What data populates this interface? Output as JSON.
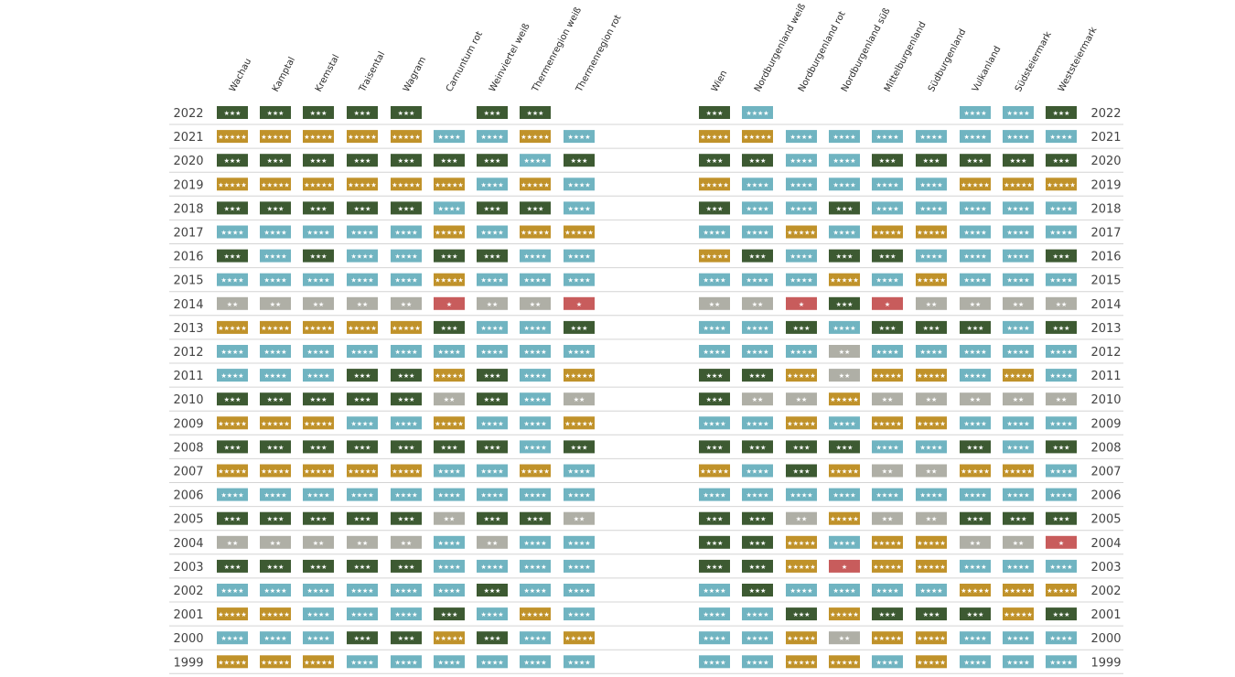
{
  "chart_data": {
    "type": "table",
    "title": "",
    "legend": {
      "1": {
        "color": "#c85c5c",
        "stars": "★"
      },
      "2": {
        "color": "#afafa6",
        "stars": "★★"
      },
      "3": {
        "color": "#3d5a32",
        "stars": "★★★"
      },
      "4": {
        "color": "#70b4c1",
        "stars": "★★★★"
      },
      "5": {
        "color": "#c0922a",
        "stars": "★★★★★"
      }
    },
    "years": [
      "2022",
      "2021",
      "2020",
      "2019",
      "2018",
      "2017",
      "2016",
      "2015",
      "2014",
      "2013",
      "2012",
      "2011",
      "2010",
      "2009",
      "2008",
      "2007",
      "2006",
      "2005",
      "2004",
      "2003",
      "2002",
      "2001",
      "2000",
      "1999"
    ],
    "regions": [
      "Wachau",
      "Kamptal",
      "Kremstal",
      "Traisental",
      "Wagram",
      "Carnuntum rot",
      "Weinviertel weiß",
      "Thermenregion weiß",
      "Thermenregion rot",
      "Wien",
      "Nordburgenland weiß",
      "Nordburgenland rot",
      "Nordburgenland süß",
      "Mittelburgenland",
      "Südburgenland",
      "Vulkanland",
      "Südsteiermark",
      "Weststeiermark"
    ],
    "ratings": [
      [
        3,
        3,
        3,
        3,
        3,
        0,
        3,
        3,
        0,
        3,
        4,
        0,
        0,
        0,
        0,
        4,
        4,
        3
      ],
      [
        5,
        5,
        5,
        5,
        5,
        4,
        4,
        5,
        4,
        5,
        5,
        4,
        4,
        4,
        4,
        4,
        4,
        4
      ],
      [
        3,
        3,
        3,
        3,
        3,
        3,
        3,
        4,
        3,
        3,
        3,
        4,
        4,
        3,
        3,
        3,
        3,
        3
      ],
      [
        5,
        5,
        5,
        5,
        5,
        5,
        4,
        5,
        4,
        5,
        4,
        4,
        4,
        4,
        4,
        5,
        5,
        5
      ],
      [
        3,
        3,
        3,
        3,
        3,
        4,
        3,
        3,
        4,
        3,
        4,
        4,
        3,
        4,
        4,
        4,
        4,
        4
      ],
      [
        4,
        4,
        4,
        4,
        4,
        5,
        4,
        5,
        5,
        4,
        4,
        5,
        4,
        5,
        5,
        4,
        4,
        4
      ],
      [
        3,
        4,
        3,
        4,
        4,
        3,
        3,
        4,
        4,
        5,
        3,
        4,
        3,
        3,
        4,
        4,
        4,
        3
      ],
      [
        4,
        4,
        4,
        4,
        4,
        5,
        4,
        4,
        4,
        4,
        4,
        4,
        5,
        4,
        5,
        4,
        4,
        4
      ],
      [
        2,
        2,
        2,
        2,
        2,
        1,
        2,
        2,
        1,
        2,
        2,
        1,
        3,
        1,
        2,
        2,
        2,
        2
      ],
      [
        5,
        5,
        5,
        5,
        5,
        3,
        4,
        4,
        3,
        4,
        4,
        3,
        4,
        3,
        3,
        3,
        4,
        3
      ],
      [
        4,
        4,
        4,
        4,
        4,
        4,
        4,
        4,
        4,
        4,
        4,
        4,
        2,
        4,
        4,
        4,
        4,
        4
      ],
      [
        4,
        4,
        4,
        3,
        3,
        5,
        3,
        4,
        5,
        3,
        3,
        5,
        2,
        5,
        5,
        4,
        5,
        4
      ],
      [
        3,
        3,
        3,
        3,
        3,
        2,
        3,
        4,
        2,
        3,
        2,
        2,
        5,
        2,
        2,
        2,
        2,
        2
      ],
      [
        5,
        5,
        5,
        4,
        4,
        5,
        4,
        4,
        5,
        4,
        4,
        5,
        4,
        5,
        5,
        4,
        4,
        4
      ],
      [
        3,
        3,
        3,
        3,
        3,
        3,
        3,
        4,
        3,
        3,
        3,
        3,
        3,
        4,
        4,
        3,
        4,
        3
      ],
      [
        5,
        5,
        5,
        5,
        5,
        4,
        4,
        5,
        4,
        5,
        4,
        3,
        5,
        2,
        2,
        5,
        5,
        4
      ],
      [
        4,
        4,
        4,
        4,
        4,
        4,
        4,
        4,
        4,
        4,
        4,
        4,
        4,
        4,
        4,
        4,
        4,
        4
      ],
      [
        3,
        3,
        3,
        3,
        3,
        2,
        3,
        3,
        2,
        3,
        3,
        2,
        5,
        2,
        2,
        3,
        3,
        3
      ],
      [
        2,
        2,
        2,
        2,
        2,
        4,
        2,
        4,
        4,
        3,
        3,
        5,
        4,
        5,
        5,
        2,
        2,
        1
      ],
      [
        3,
        3,
        3,
        3,
        3,
        4,
        4,
        4,
        4,
        3,
        3,
        5,
        1,
        5,
        5,
        4,
        4,
        4
      ],
      [
        4,
        4,
        4,
        4,
        4,
        4,
        3,
        4,
        4,
        4,
        3,
        4,
        4,
        4,
        4,
        5,
        5,
        5
      ],
      [
        5,
        5,
        4,
        4,
        4,
        3,
        4,
        5,
        4,
        4,
        4,
        3,
        5,
        3,
        3,
        3,
        5,
        3
      ],
      [
        4,
        4,
        4,
        3,
        3,
        5,
        3,
        4,
        5,
        4,
        4,
        5,
        2,
        5,
        5,
        4,
        4,
        4
      ],
      [
        5,
        5,
        5,
        4,
        4,
        4,
        4,
        4,
        4,
        4,
        4,
        5,
        5,
        4,
        5,
        4,
        4,
        4
      ]
    ]
  }
}
